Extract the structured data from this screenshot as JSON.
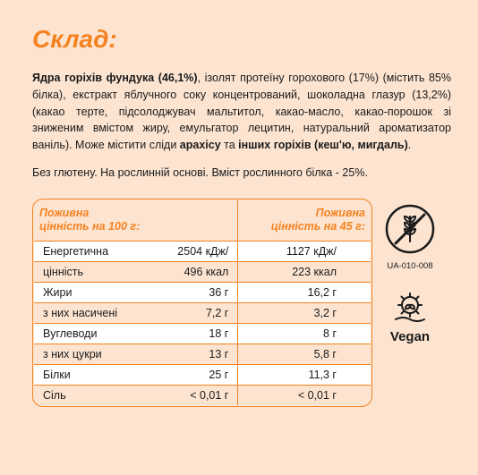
{
  "colors": {
    "background": "#fce4d1",
    "accent": "#f58220",
    "text": "#1a1a1a",
    "stripe": "#ffffff"
  },
  "title": "Склад:",
  "ingredients_html": "<b>Ядра горіхів фундука (46,1%)</b>, ізолят протеїну горохового (17%) (містить 85% білка), екстракт яблучного соку концентрований, шоколадна глазур (13,2%) (какао терте, підсолоджувач мальтитол, какао-масло, какао-порошок зі зниженим вмістом жиру, емульгатор лецитин, натуральний ароматизатор ваніль). Може містити сліди <b>арахісу</b> та <b>інших горіхів (кеш'ю, мигдаль)</b>.",
  "note": "Без глютену. На рослинній основі. Вміст рослинного білка - 25%.",
  "table": {
    "header_col1": "Поживна цінність на 100 г:",
    "header_col2": "Поживна цінність на 45 г:",
    "rows": [
      {
        "label": "Енергетична",
        "v100": "2504 кДж/",
        "v45": "1127 кДж/",
        "stripe": true
      },
      {
        "label": "цінність",
        "v100": "496 ккал",
        "v45": "223 ккал",
        "stripe": false
      },
      {
        "label": "Жири",
        "v100": "36 г",
        "v45": "16,2 г",
        "stripe": true
      },
      {
        "label": "з них насичені",
        "v100": "7,2 г",
        "v45": "3,2 г",
        "stripe": false
      },
      {
        "label": "Вуглеводи",
        "v100": "18 г",
        "v45": "8 г",
        "stripe": true
      },
      {
        "label": "з них цукри",
        "v100": "13 г",
        "v45": "5,8 г",
        "stripe": false
      },
      {
        "label": "Білки",
        "v100": "25 г",
        "v45": "11,3 г",
        "stripe": true
      },
      {
        "label": "Сіль",
        "v100": "< 0,01 г",
        "v45": "< 0,01 г",
        "stripe": false
      }
    ]
  },
  "badges": {
    "gluten_free_code": "UA-010-008",
    "vegan_label": "Vegan"
  }
}
